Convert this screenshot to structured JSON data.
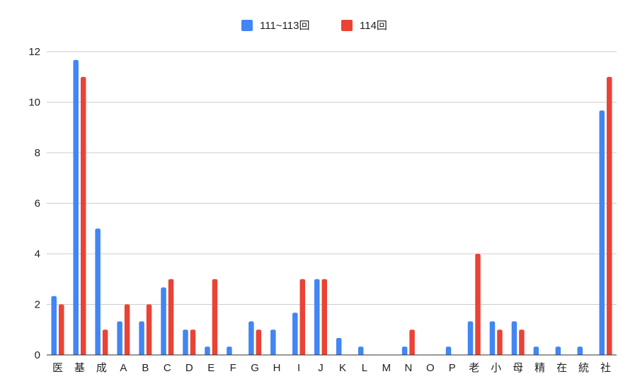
{
  "chart_data": {
    "type": "bar",
    "title": "",
    "xlabel": "",
    "ylabel": "",
    "ylim": [
      0,
      12
    ],
    "yticks": [
      0,
      2,
      4,
      6,
      8,
      10,
      12
    ],
    "grid": true,
    "legend_position": "top",
    "categories": [
      "医",
      "基",
      "成",
      "A",
      "B",
      "C",
      "D",
      "E",
      "F",
      "G",
      "H",
      "I",
      "J",
      "K",
      "L",
      "M",
      "N",
      "O",
      "P",
      "老",
      "小",
      "母",
      "精",
      "在",
      "統",
      "社"
    ],
    "series": [
      {
        "name": "111~113回",
        "color": "#4285F4",
        "values": [
          2.33,
          11.67,
          5,
          1.33,
          1.33,
          2.67,
          1,
          0.33,
          0.33,
          1.33,
          1,
          1.67,
          3,
          0.67,
          0.33,
          0,
          0.33,
          0,
          0.33,
          1.33,
          1.33,
          1.33,
          0.33,
          0.33,
          0.33,
          9.67
        ]
      },
      {
        "name": "114回",
        "color": "#EA4335",
        "values": [
          2,
          11,
          1,
          2,
          2,
          3,
          1,
          3,
          0,
          1,
          0,
          3,
          3,
          0,
          0,
          0,
          1,
          0,
          0,
          4,
          1,
          1,
          0,
          0,
          0,
          11
        ]
      }
    ]
  }
}
